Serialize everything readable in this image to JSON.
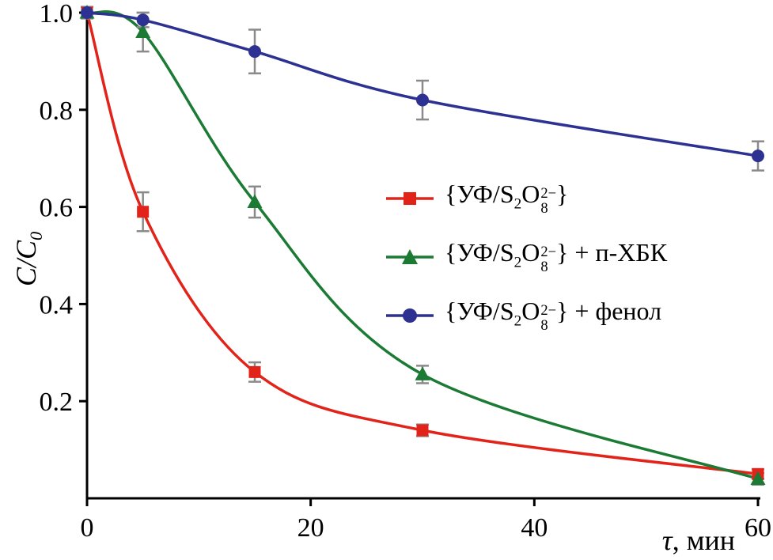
{
  "chart_data": {
    "type": "line",
    "x": [
      0,
      5,
      15,
      30,
      60
    ],
    "series": [
      {
        "name": "{УФ/S2O8(2-)}",
        "marker": "square",
        "color": "#e2231a",
        "values": [
          1.0,
          0.59,
          0.26,
          0.14,
          0.05
        ],
        "errors": [
          0,
          0.04,
          0.02,
          0.012,
          0.01
        ],
        "legend_suffix": ""
      },
      {
        "name": "{УФ/S2O8(2-)} + п-ХБК",
        "marker": "triangle",
        "color": "#1b7a33",
        "values": [
          1.0,
          0.96,
          0.61,
          0.255,
          0.04
        ],
        "errors": [
          0,
          0.04,
          0.032,
          0.018,
          0.012
        ],
        "legend_suffix": " + п-ХБК"
      },
      {
        "name": "{УФ/S2O8(2-)} + фенол",
        "marker": "circle",
        "color": "#2c3192",
        "values": [
          1.0,
          0.985,
          0.92,
          0.82,
          0.705
        ],
        "errors": [
          0.012,
          0.015,
          0.045,
          0.04,
          0.03
        ],
        "legend_suffix": " + фенол"
      }
    ],
    "x_ticks": [
      0,
      20,
      40,
      60
    ],
    "y_ticks": [
      0.2,
      0.4,
      0.6,
      0.8,
      1.0
    ],
    "xlim": [
      0,
      60
    ],
    "ylim": [
      0,
      1.0
    ],
    "grid": false,
    "legend_position": "center-right",
    "error_bar_color": "#8a8a8a",
    "axis_color": "#000000",
    "xlabel_tau": "τ",
    "xlabel_rest": ", мин",
    "ylabel": {
      "c1": "C",
      "slash": "/",
      "c2": "C",
      "sub": "0"
    },
    "formula": {
      "open": "{УФ/S",
      "sub1": "2",
      "o": "O",
      "sub2": "8",
      "sup": "2−",
      "close": "}"
    }
  }
}
